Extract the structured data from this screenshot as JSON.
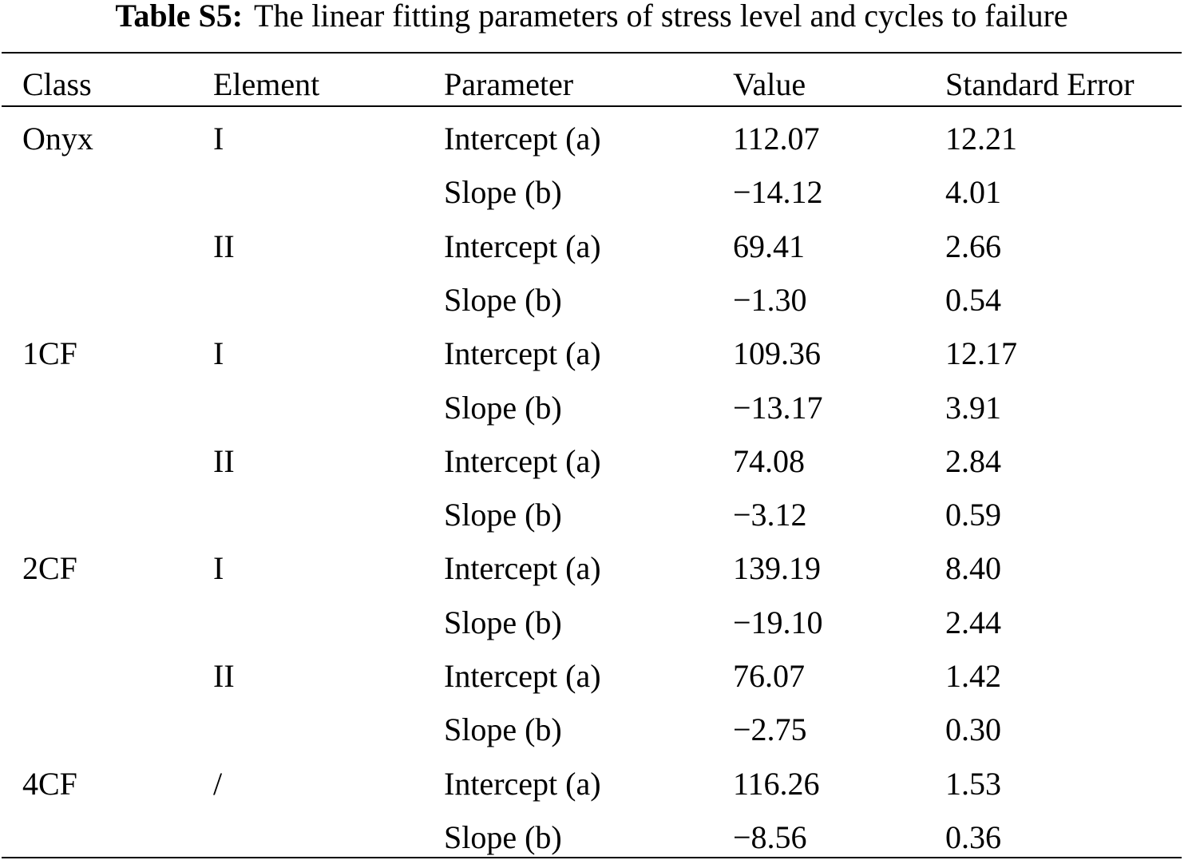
{
  "caption": {
    "label": "Table S5:",
    "text": "The linear fitting parameters of stress level and cycles to failure"
  },
  "table": {
    "headers": [
      "Class",
      "Element",
      "Parameter",
      "Value",
      "Standard Error"
    ],
    "rows": [
      [
        "Onyx",
        "I",
        "Intercept (a)",
        "112.07",
        "12.21"
      ],
      [
        "",
        "",
        "Slope (b)",
        "−14.12",
        "4.01"
      ],
      [
        "",
        "II",
        "Intercept (a)",
        "69.41",
        "2.66"
      ],
      [
        "",
        "",
        "Slope (b)",
        "−1.30",
        "0.54"
      ],
      [
        "1CF",
        "I",
        "Intercept (a)",
        "109.36",
        "12.17"
      ],
      [
        "",
        "",
        "Slope (b)",
        "−13.17",
        "3.91"
      ],
      [
        "",
        "II",
        "Intercept (a)",
        "74.08",
        "2.84"
      ],
      [
        "",
        "",
        "Slope (b)",
        "−3.12",
        "0.59"
      ],
      [
        "2CF",
        "I",
        "Intercept (a)",
        "139.19",
        "8.40"
      ],
      [
        "",
        "",
        "Slope (b)",
        "−19.10",
        "2.44"
      ],
      [
        "",
        "II",
        "Intercept (a)",
        "76.07",
        "1.42"
      ],
      [
        "",
        "",
        "Slope (b)",
        "−2.75",
        "0.30"
      ],
      [
        "4CF",
        "/",
        "Intercept (a)",
        "116.26",
        "1.53"
      ],
      [
        "",
        "",
        "Slope (b)",
        "−8.56",
        "0.36"
      ]
    ]
  }
}
